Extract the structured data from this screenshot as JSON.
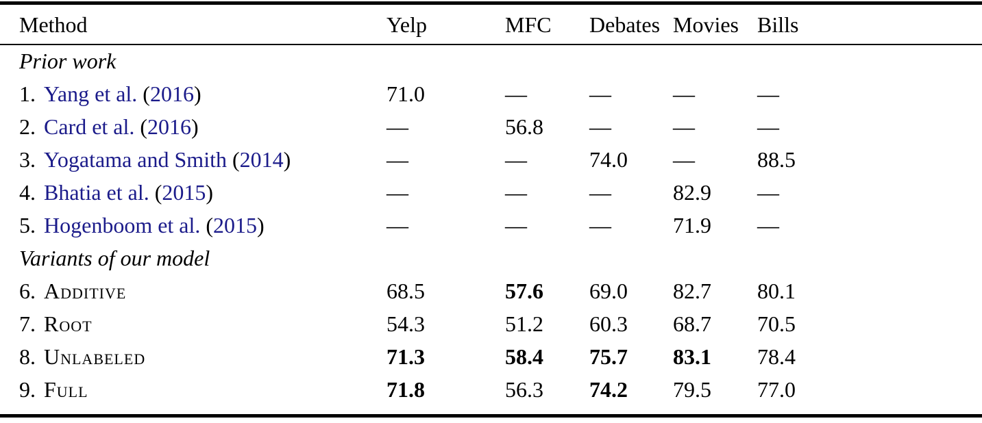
{
  "colors": {
    "link_blue": "#1b1b8a",
    "text": "#000000",
    "background": "#ffffff",
    "rule": "#000000"
  },
  "table": {
    "columns": [
      "Method",
      "Yelp",
      "MFC",
      "Debates",
      "Movies",
      "Bills"
    ],
    "sections": [
      {
        "header": "Prior work",
        "rows": [
          {
            "num": "1.",
            "cite": "Yang et al.",
            "year": "2016",
            "values": [
              {
                "text": "71.0"
              },
              {
                "text": "—"
              },
              {
                "text": "—"
              },
              {
                "text": "—"
              },
              {
                "text": "—"
              }
            ]
          },
          {
            "num": "2.",
            "cite": "Card et al.",
            "year": "2016",
            "values": [
              {
                "text": "—"
              },
              {
                "text": "56.8"
              },
              {
                "text": "—"
              },
              {
                "text": "—"
              },
              {
                "text": "—"
              }
            ]
          },
          {
            "num": "3.",
            "cite": "Yogatama and Smith",
            "year": "2014",
            "values": [
              {
                "text": "—"
              },
              {
                "text": "—"
              },
              {
                "text": "74.0"
              },
              {
                "text": "—"
              },
              {
                "text": "88.5"
              }
            ]
          },
          {
            "num": "4.",
            "cite": "Bhatia et al.",
            "year": "2015",
            "values": [
              {
                "text": "—"
              },
              {
                "text": "—"
              },
              {
                "text": "—"
              },
              {
                "text": "82.9"
              },
              {
                "text": "—"
              }
            ]
          },
          {
            "num": "5.",
            "cite": "Hogenboom et al.",
            "year": "2015",
            "values": [
              {
                "text": "—"
              },
              {
                "text": "—"
              },
              {
                "text": "—"
              },
              {
                "text": "71.9"
              },
              {
                "text": "—"
              }
            ]
          }
        ]
      },
      {
        "header": "Variants of our model",
        "rows": [
          {
            "num": "6.",
            "name": "Additive",
            "smallcaps": true,
            "values": [
              {
                "text": "68.5"
              },
              {
                "text": "57.6",
                "bold": true
              },
              {
                "text": "69.0"
              },
              {
                "text": "82.7"
              },
              {
                "text": "80.1"
              }
            ]
          },
          {
            "num": "7.",
            "name": "Root",
            "smallcaps": true,
            "values": [
              {
                "text": "54.3"
              },
              {
                "text": "51.2"
              },
              {
                "text": "60.3"
              },
              {
                "text": "68.7"
              },
              {
                "text": "70.5"
              }
            ]
          },
          {
            "num": "8.",
            "name": "Unlabeled",
            "smallcaps": true,
            "values": [
              {
                "text": "71.3",
                "bold": true
              },
              {
                "text": "58.4",
                "bold": true
              },
              {
                "text": "75.7",
                "bold": true
              },
              {
                "text": "83.1",
                "bold": true
              },
              {
                "text": "78.4"
              }
            ]
          },
          {
            "num": "9.",
            "name": "Full",
            "smallcaps": true,
            "values": [
              {
                "text": "71.8",
                "bold": true
              },
              {
                "text": "56.3"
              },
              {
                "text": "74.2",
                "bold": true
              },
              {
                "text": "79.5"
              },
              {
                "text": "77.0"
              }
            ]
          }
        ]
      }
    ]
  }
}
